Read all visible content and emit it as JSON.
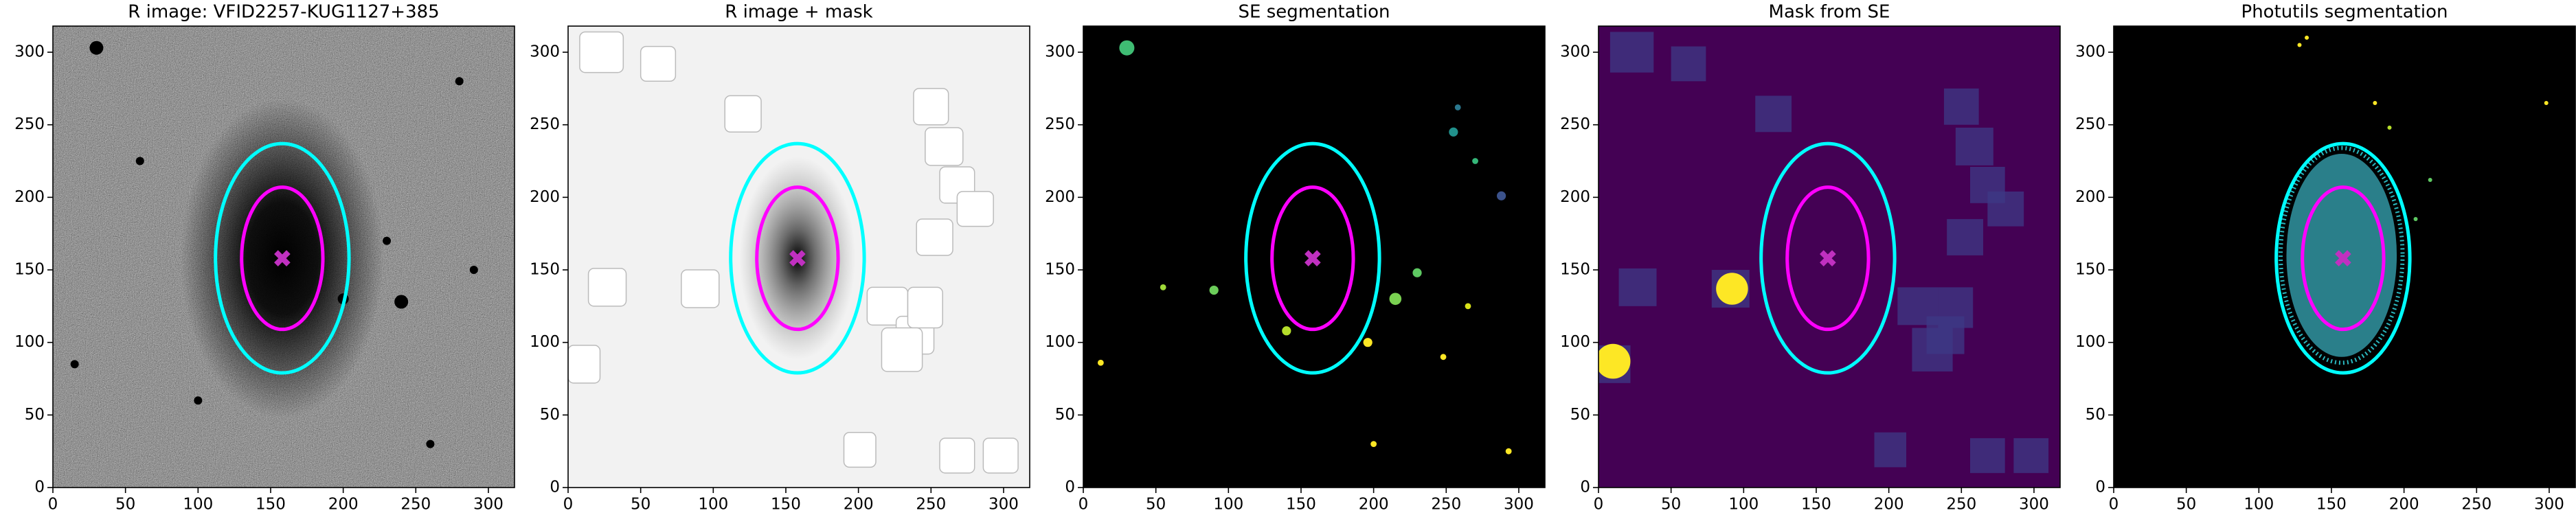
{
  "chart_data": [
    {
      "type": "image",
      "title": "R image: VFID2257-KUG1127+385",
      "background": "#7a7a7a",
      "xlim": [
        0,
        318
      ],
      "ylim": [
        0,
        318
      ],
      "xticks": [
        0,
        50,
        100,
        150,
        200,
        250,
        300
      ],
      "yticks": [
        0,
        50,
        100,
        150,
        200,
        250,
        300
      ],
      "ellipses": [
        {
          "cx": 158,
          "cy": 158,
          "rx": 46,
          "ry": 79,
          "color": "#00ffff"
        },
        {
          "cx": 158,
          "cy": 158,
          "rx": 28,
          "ry": 49,
          "color": "#ff00ff"
        }
      ],
      "marker": {
        "x": 158,
        "y": 158,
        "color": "#c030c0"
      }
    },
    {
      "type": "image",
      "title": "R image + mask",
      "background": "#f2f2f2",
      "xlim": [
        0,
        318
      ],
      "ylim": [
        0,
        318
      ],
      "xticks": [
        0,
        50,
        100,
        150,
        200,
        250,
        300
      ],
      "yticks": [
        0,
        50,
        100,
        150,
        200,
        250,
        300
      ],
      "ellipses": [
        {
          "cx": 158,
          "cy": 158,
          "rx": 46,
          "ry": 79,
          "color": "#00ffff"
        },
        {
          "cx": 158,
          "cy": 158,
          "rx": 28,
          "ry": 49,
          "color": "#ff00ff"
        }
      ],
      "marker": {
        "x": 158,
        "y": 158,
        "color": "#c030c0"
      }
    },
    {
      "type": "image",
      "title": "SE segmentation",
      "background": "#000000",
      "xlim": [
        0,
        318
      ],
      "ylim": [
        0,
        318
      ],
      "xticks": [
        0,
        50,
        100,
        150,
        200,
        250,
        300
      ],
      "yticks": [
        0,
        50,
        100,
        150,
        200,
        250,
        300
      ],
      "ellipses": [
        {
          "cx": 158,
          "cy": 158,
          "rx": 46,
          "ry": 79,
          "color": "#00ffff"
        },
        {
          "cx": 158,
          "cy": 158,
          "rx": 28,
          "ry": 49,
          "color": "#ff00ff"
        }
      ],
      "marker": {
        "x": 158,
        "y": 158,
        "color": "#c030c0"
      }
    },
    {
      "type": "image",
      "title": "Mask from SE",
      "background": "#440154",
      "xlim": [
        0,
        318
      ],
      "ylim": [
        0,
        318
      ],
      "xticks": [
        0,
        50,
        100,
        150,
        200,
        250,
        300
      ],
      "yticks": [
        0,
        50,
        100,
        150,
        200,
        250,
        300
      ],
      "ellipses": [
        {
          "cx": 158,
          "cy": 158,
          "rx": 46,
          "ry": 79,
          "color": "#00ffff"
        },
        {
          "cx": 158,
          "cy": 158,
          "rx": 28,
          "ry": 49,
          "color": "#ff00ff"
        }
      ],
      "marker": {
        "x": 158,
        "y": 158,
        "color": "#c030c0"
      }
    },
    {
      "type": "image",
      "title": "Photutils segmentation",
      "background": "#000000",
      "xlim": [
        0,
        318
      ],
      "ylim": [
        0,
        318
      ],
      "xticks": [
        0,
        50,
        100,
        150,
        200,
        250,
        300
      ],
      "yticks": [
        0,
        50,
        100,
        150,
        200,
        250,
        300
      ],
      "ellipses": [
        {
          "cx": 158,
          "cy": 158,
          "rx": 46,
          "ry": 79,
          "color": "#00ffff"
        },
        {
          "cx": 158,
          "cy": 158,
          "rx": 28,
          "ry": 49,
          "color": "#ff00ff"
        }
      ],
      "marker": {
        "x": 158,
        "y": 158,
        "color": "#c030c0"
      }
    }
  ]
}
